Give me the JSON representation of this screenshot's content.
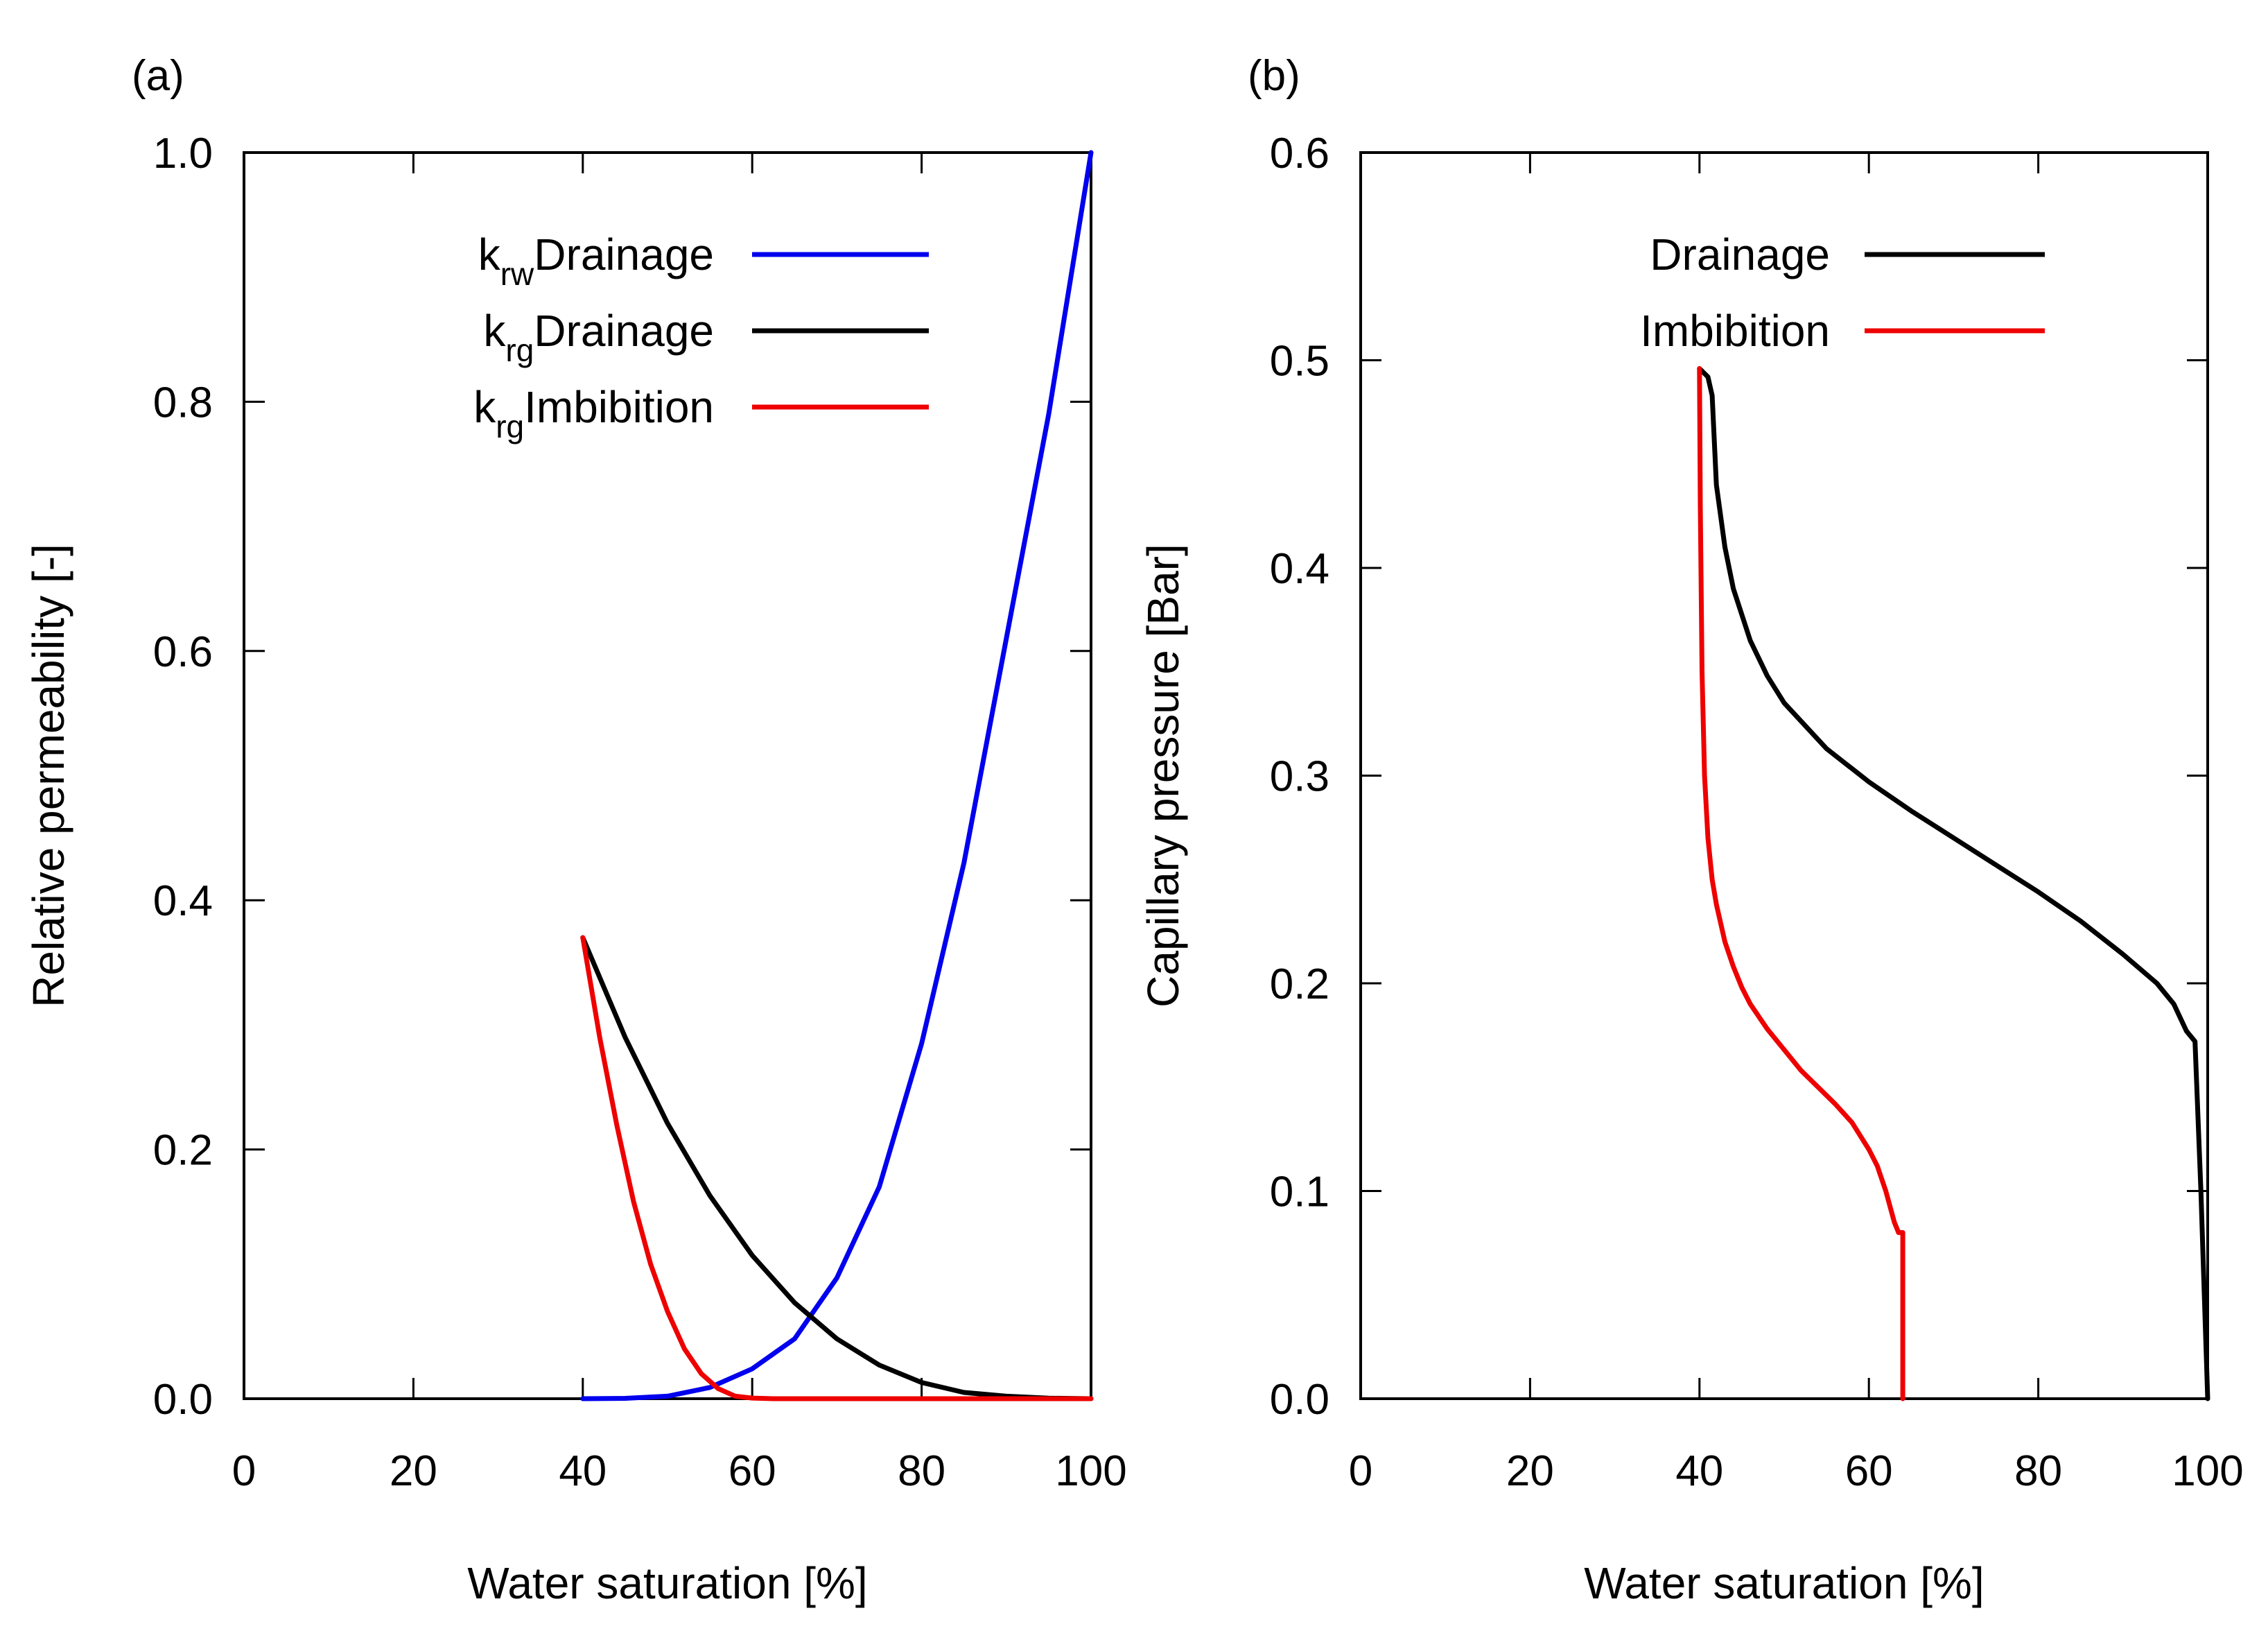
{
  "chart_data": [
    {
      "panel_label": "(a)",
      "type": "line",
      "xlabel": "Water saturation [%]",
      "ylabel": "Relative permeability [-]",
      "xlim": [
        0,
        100
      ],
      "ylim": [
        0,
        1.0
      ],
      "xticks": [
        "0",
        "20",
        "40",
        "60",
        "80",
        "100"
      ],
      "yticks": [
        "0.0",
        "0.2",
        "0.4",
        "0.6",
        "0.8",
        "1.0"
      ],
      "legend_position": "top-right",
      "series": [
        {
          "name": "k_rw Drainage",
          "legend_main": "k",
          "legend_sub": "rw",
          "legend_text": "Drainage",
          "color": "#0000ee",
          "x": [
            40,
            45,
            50,
            55,
            60,
            65,
            70,
            75,
            80,
            85,
            90,
            95,
            100
          ],
          "y": [
            0.0,
            0.0003,
            0.002,
            0.009,
            0.024,
            0.048,
            0.097,
            0.17,
            0.285,
            0.43,
            0.61,
            0.79,
            1.0
          ]
        },
        {
          "name": "k_rg Drainage",
          "legend_main": "k",
          "legend_sub": "rg",
          "legend_text": "Drainage",
          "color": "#000000",
          "x": [
            40,
            45,
            50,
            55,
            60,
            65,
            70,
            75,
            80,
            85,
            90,
            95,
            100
          ],
          "y": [
            0.37,
            0.29,
            0.221,
            0.163,
            0.115,
            0.077,
            0.048,
            0.027,
            0.013,
            0.005,
            0.002,
            0.0004,
            0.0
          ]
        },
        {
          "name": "k_rg Imbibition",
          "legend_main": "k",
          "legend_sub": "rg",
          "legend_text": "Imbibition",
          "color": "#ee0000",
          "x": [
            40,
            42,
            44,
            46,
            48,
            50,
            52,
            54,
            56,
            58,
            60,
            62.5,
            70,
            80,
            90,
            100
          ],
          "y": [
            0.37,
            0.29,
            0.22,
            0.158,
            0.108,
            0.07,
            0.04,
            0.02,
            0.008,
            0.002,
            0.0005,
            0.0,
            0.0,
            0.0,
            0.0,
            0.0
          ]
        }
      ]
    },
    {
      "panel_label": "(b)",
      "type": "line",
      "xlabel": "Water saturation [%]",
      "ylabel": "Capillary pressure [Bar]",
      "xlim": [
        0,
        100
      ],
      "ylim": [
        0,
        0.6
      ],
      "xticks": [
        "0",
        "20",
        "40",
        "60",
        "80",
        "100"
      ],
      "yticks": [
        "0.0",
        "0.1",
        "0.2",
        "0.3",
        "0.4",
        "0.5",
        "0.6"
      ],
      "legend_position": "top-right",
      "series": [
        {
          "name": "Drainage",
          "legend_text": "Drainage",
          "color": "#000000",
          "x": [
            40,
            41,
            41.5,
            42,
            43,
            44,
            46,
            48,
            50,
            55,
            60,
            65,
            70,
            75,
            80,
            85,
            90,
            94,
            96,
            97.5,
            98.5,
            99.2,
            99.6,
            100
          ],
          "y": [
            0.496,
            0.492,
            0.483,
            0.44,
            0.41,
            0.39,
            0.365,
            0.348,
            0.335,
            0.313,
            0.297,
            0.283,
            0.27,
            0.257,
            0.244,
            0.23,
            0.214,
            0.2,
            0.19,
            0.177,
            0.172,
            0.1,
            0.05,
            0.0
          ]
        },
        {
          "name": "Imbibition",
          "legend_text": "Imbibition",
          "color": "#ee0000",
          "x": [
            40,
            40.1,
            40.3,
            40.6,
            41,
            41.5,
            42,
            43,
            44,
            45,
            46,
            48,
            50,
            52,
            54,
            56,
            58,
            60,
            61,
            62,
            63,
            63.5,
            64,
            64
          ],
          "y": [
            0.496,
            0.43,
            0.35,
            0.3,
            0.27,
            0.25,
            0.238,
            0.22,
            0.208,
            0.198,
            0.19,
            0.178,
            0.168,
            0.158,
            0.15,
            0.142,
            0.133,
            0.12,
            0.112,
            0.1,
            0.085,
            0.08,
            0.08,
            0.0
          ]
        }
      ]
    }
  ]
}
